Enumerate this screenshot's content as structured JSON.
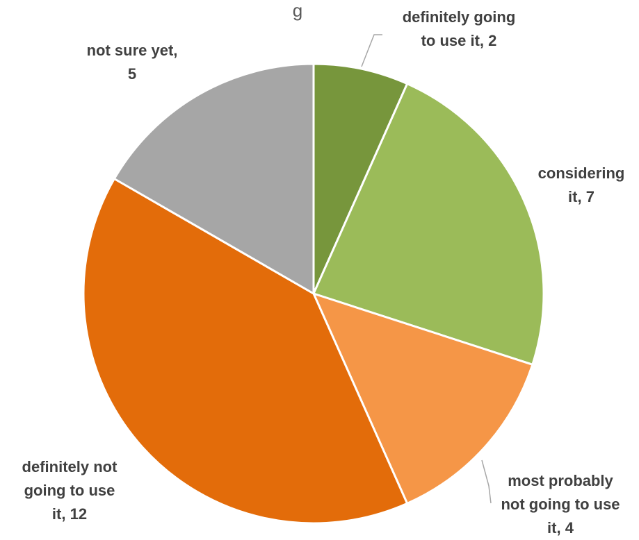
{
  "chart_data": {
    "type": "pie",
    "title_fragment": "g",
    "start_angle_deg": 0,
    "direction": "clockwise",
    "slices": [
      {
        "label": "definitely going to use it",
        "value": 2,
        "color": "#77963c",
        "label_lines": [
          "definitely going",
          "to use it, 2"
        ]
      },
      {
        "label": "considering it",
        "value": 7,
        "color": "#9bbb59",
        "label_lines": [
          "considering",
          "it, 7"
        ]
      },
      {
        "label": "most probably not going to use it",
        "value": 4,
        "color": "#f59647",
        "label_lines": [
          "most probably",
          "not going to use",
          "it, 4"
        ]
      },
      {
        "label": "definitely not going to use it",
        "value": 12,
        "color": "#e36c0a",
        "label_lines": [
          "definitely not",
          "going to use",
          "it, 12"
        ]
      },
      {
        "label": "not sure yet",
        "value": 5,
        "color": "#a6a6a6",
        "label_lines": [
          "not sure yet,",
          "5"
        ]
      }
    ],
    "legend": "none"
  }
}
